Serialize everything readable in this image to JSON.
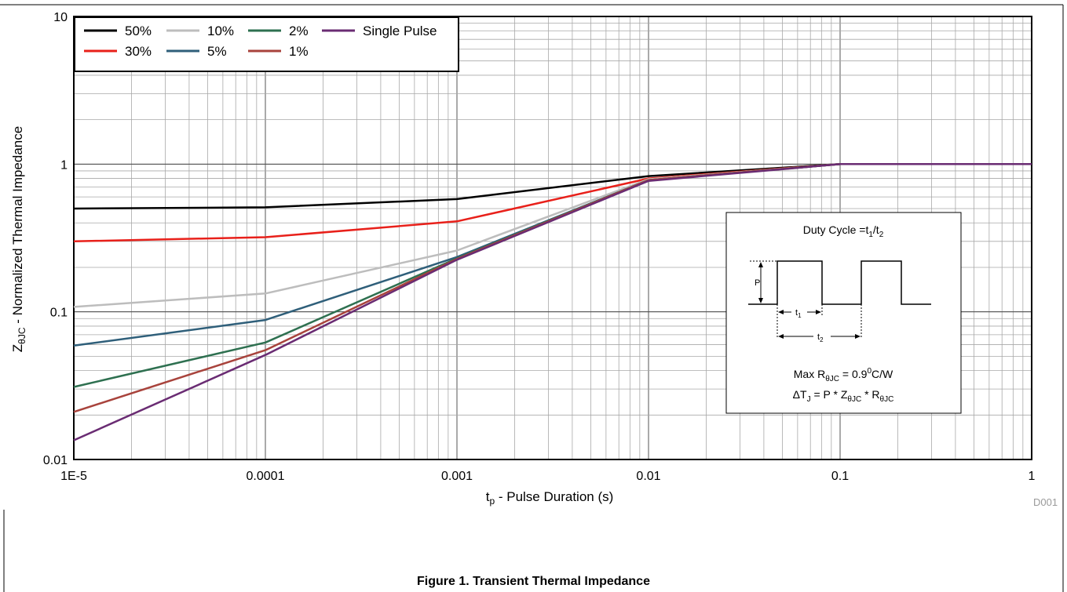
{
  "caption": "Figure 1. Transient Thermal Impedance",
  "figure_code": "D001",
  "chart_data": {
    "type": "line",
    "x_scale": "log",
    "y_scale": "log",
    "xlim": [
      1e-05,
      1
    ],
    "ylim": [
      0.01,
      10
    ],
    "grid": true,
    "legend_placement": "top-left",
    "xlabel_main": "t",
    "xlabel_sub": "p",
    "xlabel_rest": " - Pulse Duration (s)",
    "ylabel_main": "Z",
    "ylabel_sub": "θJC",
    "ylabel_rest": " - Normalized Thermal Impedance",
    "x_tick_labels": [
      "1E-5",
      "0.0001",
      "0.001",
      "0.01",
      "0.1",
      "1"
    ],
    "x_tick_values": [
      1e-05,
      0.0001,
      0.001,
      0.01,
      0.1,
      1
    ],
    "y_tick_labels": [
      "0.01",
      "0.1",
      "1",
      "10"
    ],
    "y_tick_values": [
      0.01,
      0.1,
      1,
      10
    ],
    "series": [
      {
        "name": "50%",
        "color": "#000000",
        "x": [
          1e-05,
          0.0001,
          0.001,
          0.01,
          0.1,
          1
        ],
        "y": [
          0.5,
          0.51,
          0.58,
          0.83,
          1.0,
          1.0
        ]
      },
      {
        "name": "30%",
        "color": "#e8201a",
        "x": [
          1e-05,
          0.0001,
          0.001,
          0.01,
          0.1,
          1
        ],
        "y": [
          0.3,
          0.32,
          0.41,
          0.8,
          1.0,
          1.0
        ]
      },
      {
        "name": "10%",
        "color": "#bdbdbd",
        "x": [
          1e-05,
          0.0001,
          0.001,
          0.01,
          0.1,
          1
        ],
        "y": [
          0.108,
          0.133,
          0.26,
          0.79,
          1.0,
          1.0
        ]
      },
      {
        "name": "5%",
        "color": "#2f5f7a",
        "x": [
          1e-05,
          0.0001,
          0.001,
          0.01,
          0.1,
          1
        ],
        "y": [
          0.059,
          0.088,
          0.235,
          0.78,
          1.0,
          1.0
        ]
      },
      {
        "name": "2%",
        "color": "#2e7050",
        "x": [
          1e-05,
          0.0001,
          0.001,
          0.01,
          0.1,
          1
        ],
        "y": [
          0.031,
          0.062,
          0.23,
          0.78,
          1.0,
          1.0
        ]
      },
      {
        "name": "1%",
        "color": "#a8433c",
        "x": [
          1e-05,
          0.0001,
          0.001,
          0.01,
          0.1,
          1
        ],
        "y": [
          0.021,
          0.055,
          0.228,
          0.78,
          1.0,
          1.0
        ]
      },
      {
        "name": "Single Pulse",
        "color": "#6a2c73",
        "x": [
          1e-05,
          0.0001,
          0.001,
          0.01,
          0.1,
          1
        ],
        "y": [
          0.0135,
          0.051,
          0.225,
          0.77,
          1.0,
          1.0
        ]
      }
    ]
  },
  "inset": {
    "title_main": "Duty Cycle =t",
    "title_sub1": "1",
    "title_mid": "/t",
    "title_sub2": "2",
    "p_label": "P",
    "t1_main": "t",
    "t1_sub": "1",
    "t2_main": "t",
    "t2_sub": "2",
    "line1_a": "Max R",
    "line1_sub": "θJC",
    "line1_b": " = 0.9",
    "line1_sup": "0",
    "line1_c": "C/W",
    "line2_a": "ΔT",
    "line2_sub1": "J",
    "line2_b": " = P * Z",
    "line2_sub2": "θJC",
    "line2_c": " * R",
    "line2_sub3": "θJC"
  }
}
